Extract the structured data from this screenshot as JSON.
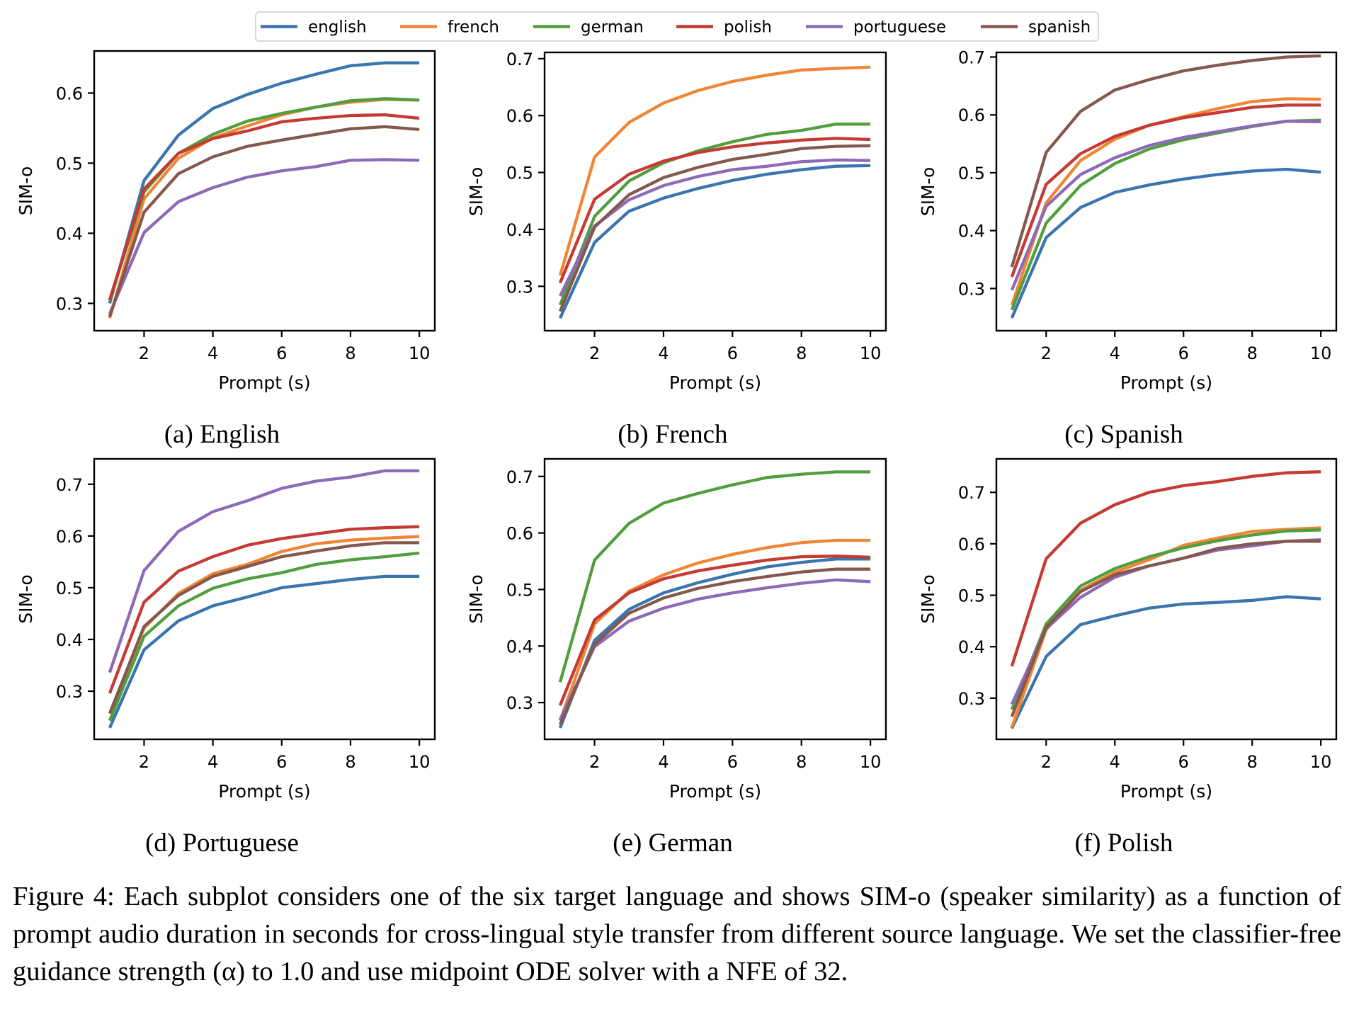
{
  "legend": {
    "entries": [
      {
        "key": "english",
        "label": "english",
        "color": "#3a75ae"
      },
      {
        "key": "french",
        "label": "french",
        "color": "#ef8636"
      },
      {
        "key": "german",
        "label": "german",
        "color": "#519e3e"
      },
      {
        "key": "polish",
        "label": "polish",
        "color": "#c53a32"
      },
      {
        "key": "portuguese",
        "label": "portuguese",
        "color": "#8d6ab8"
      },
      {
        "key": "spanish",
        "label": "spanish",
        "color": "#85584e"
      }
    ],
    "placement": "top-center"
  },
  "caption": "Figure 4: Each subplot considers one of the six target language and shows SIM-o (speaker similarity) as a function of prompt audio duration in seconds for cross-lingual style transfer from different source language. We set the classifier-free guidance strength (α) to 1.0 and use midpoint ODE solver with a NFE of 32.",
  "chart_data": [
    {
      "type": "line",
      "subcaption": "(a) English",
      "xlabel": "Prompt (s)",
      "ylabel": "SIM-o",
      "x": [
        1,
        2,
        3,
        4,
        5,
        6,
        7,
        8,
        9,
        10
      ],
      "xticks": [
        2,
        4,
        6,
        8,
        10
      ],
      "yticks": [
        0.3,
        0.4,
        0.5,
        0.6
      ],
      "xlim": [
        0.55,
        10.45
      ],
      "ylim": [
        0.261,
        0.66
      ],
      "grid": false,
      "series": [
        {
          "name": "english",
          "values": [
            0.3,
            0.475,
            0.54,
            0.578,
            0.598,
            0.614,
            0.627,
            0.639,
            0.643,
            0.643
          ]
        },
        {
          "name": "french",
          "values": [
            0.279,
            0.449,
            0.507,
            0.536,
            0.553,
            0.569,
            0.58,
            0.587,
            0.591,
            0.59
          ]
        },
        {
          "name": "german",
          "values": [
            0.304,
            0.459,
            0.514,
            0.541,
            0.56,
            0.571,
            0.58,
            0.589,
            0.592,
            0.59
          ]
        },
        {
          "name": "polish",
          "values": [
            0.305,
            0.463,
            0.514,
            0.535,
            0.546,
            0.559,
            0.564,
            0.568,
            0.569,
            0.564
          ]
        },
        {
          "name": "portuguese",
          "values": [
            0.285,
            0.401,
            0.445,
            0.465,
            0.48,
            0.489,
            0.495,
            0.504,
            0.505,
            0.504
          ]
        },
        {
          "name": "spanish",
          "values": [
            0.281,
            0.43,
            0.485,
            0.509,
            0.524,
            0.533,
            0.541,
            0.549,
            0.552,
            0.548
          ]
        }
      ]
    },
    {
      "type": "line",
      "subcaption": "(b) French",
      "xlabel": "Prompt (s)",
      "ylabel": "SIM-o",
      "x": [
        1,
        2,
        3,
        4,
        5,
        6,
        7,
        8,
        9,
        10
      ],
      "xticks": [
        2,
        4,
        6,
        8,
        10
      ],
      "yticks": [
        0.3,
        0.4,
        0.5,
        0.6,
        0.7
      ],
      "xlim": [
        0.55,
        10.45
      ],
      "ylim": [
        0.222,
        0.711
      ],
      "grid": false,
      "series": [
        {
          "name": "english",
          "values": [
            0.244,
            0.377,
            0.432,
            0.455,
            0.472,
            0.486,
            0.497,
            0.505,
            0.511,
            0.512
          ]
        },
        {
          "name": "french",
          "values": [
            0.319,
            0.527,
            0.588,
            0.622,
            0.644,
            0.66,
            0.671,
            0.68,
            0.683,
            0.685
          ]
        },
        {
          "name": "german",
          "values": [
            0.267,
            0.423,
            0.485,
            0.517,
            0.538,
            0.554,
            0.567,
            0.574,
            0.585,
            0.585
          ]
        },
        {
          "name": "polish",
          "values": [
            0.306,
            0.453,
            0.497,
            0.52,
            0.535,
            0.545,
            0.552,
            0.557,
            0.56,
            0.558
          ]
        },
        {
          "name": "portuguese",
          "values": [
            0.283,
            0.406,
            0.452,
            0.477,
            0.493,
            0.505,
            0.511,
            0.519,
            0.522,
            0.521
          ]
        },
        {
          "name": "spanish",
          "values": [
            0.256,
            0.404,
            0.461,
            0.491,
            0.509,
            0.523,
            0.532,
            0.542,
            0.546,
            0.547
          ]
        }
      ]
    },
    {
      "type": "line",
      "subcaption": "(c) Spanish",
      "xlabel": "Prompt (s)",
      "ylabel": "SIM-o",
      "x": [
        1,
        2,
        3,
        4,
        5,
        6,
        7,
        8,
        9,
        10
      ],
      "xticks": [
        2,
        4,
        6,
        8,
        10
      ],
      "yticks": [
        0.3,
        0.4,
        0.5,
        0.6,
        0.7
      ],
      "xlim": [
        0.55,
        10.45
      ],
      "ylim": [
        0.227,
        0.708
      ],
      "grid": false,
      "series": [
        {
          "name": "english",
          "values": [
            0.249,
            0.388,
            0.44,
            0.466,
            0.479,
            0.489,
            0.497,
            0.503,
            0.506,
            0.501
          ]
        },
        {
          "name": "french",
          "values": [
            0.271,
            0.448,
            0.521,
            0.558,
            0.582,
            0.597,
            0.611,
            0.623,
            0.628,
            0.627
          ]
        },
        {
          "name": "german",
          "values": [
            0.263,
            0.413,
            0.478,
            0.516,
            0.541,
            0.557,
            0.569,
            0.58,
            0.589,
            0.591
          ]
        },
        {
          "name": "polish",
          "values": [
            0.32,
            0.48,
            0.533,
            0.563,
            0.582,
            0.595,
            0.604,
            0.613,
            0.617,
            0.617
          ]
        },
        {
          "name": "portuguese",
          "values": [
            0.297,
            0.442,
            0.497,
            0.526,
            0.547,
            0.561,
            0.571,
            0.581,
            0.589,
            0.588
          ]
        },
        {
          "name": "spanish",
          "values": [
            0.337,
            0.535,
            0.606,
            0.643,
            0.661,
            0.676,
            0.686,
            0.694,
            0.7,
            0.702
          ]
        }
      ]
    },
    {
      "type": "line",
      "subcaption": "(d) Portuguese",
      "xlabel": "Prompt (s)",
      "ylabel": "SIM-o",
      "x": [
        1,
        2,
        3,
        4,
        5,
        6,
        7,
        8,
        9,
        10
      ],
      "xticks": [
        2,
        4,
        6,
        8,
        10
      ],
      "yticks": [
        0.3,
        0.4,
        0.5,
        0.6,
        0.7
      ],
      "xlim": [
        0.55,
        10.45
      ],
      "ylim": [
        0.207,
        0.749
      ],
      "grid": false,
      "series": [
        {
          "name": "english",
          "values": [
            0.229,
            0.38,
            0.436,
            0.465,
            0.482,
            0.5,
            0.508,
            0.516,
            0.522,
            0.522
          ]
        },
        {
          "name": "french",
          "values": [
            0.257,
            0.422,
            0.489,
            0.527,
            0.545,
            0.57,
            0.585,
            0.592,
            0.596,
            0.599
          ]
        },
        {
          "name": "german",
          "values": [
            0.243,
            0.406,
            0.465,
            0.499,
            0.517,
            0.529,
            0.545,
            0.554,
            0.56,
            0.567
          ]
        },
        {
          "name": "polish",
          "values": [
            0.296,
            0.472,
            0.532,
            0.56,
            0.582,
            0.595,
            0.604,
            0.613,
            0.616,
            0.618
          ]
        },
        {
          "name": "portuguese",
          "values": [
            0.336,
            0.533,
            0.609,
            0.647,
            0.668,
            0.692,
            0.706,
            0.714,
            0.726,
            0.726
          ]
        },
        {
          "name": "spanish",
          "values": [
            0.257,
            0.425,
            0.485,
            0.522,
            0.541,
            0.56,
            0.571,
            0.581,
            0.587,
            0.587
          ]
        }
      ]
    },
    {
      "type": "line",
      "subcaption": "(e) German",
      "xlabel": "Prompt (s)",
      "ylabel": "SIM-o",
      "x": [
        1,
        2,
        3,
        4,
        5,
        6,
        7,
        8,
        9,
        10
      ],
      "xticks": [
        2,
        4,
        6,
        8,
        10
      ],
      "yticks": [
        0.3,
        0.4,
        0.5,
        0.6,
        0.7
      ],
      "xlim": [
        0.55,
        10.45
      ],
      "ylim": [
        0.235,
        0.731
      ],
      "grid": false,
      "series": [
        {
          "name": "english",
          "values": [
            0.255,
            0.41,
            0.465,
            0.494,
            0.512,
            0.527,
            0.54,
            0.548,
            0.554,
            0.554
          ]
        },
        {
          "name": "french",
          "values": [
            0.268,
            0.439,
            0.497,
            0.526,
            0.547,
            0.562,
            0.574,
            0.583,
            0.587,
            0.587
          ]
        },
        {
          "name": "german",
          "values": [
            0.336,
            0.552,
            0.617,
            0.653,
            0.67,
            0.685,
            0.698,
            0.704,
            0.708,
            0.708
          ]
        },
        {
          "name": "polish",
          "values": [
            0.295,
            0.446,
            0.494,
            0.519,
            0.533,
            0.543,
            0.552,
            0.558,
            0.559,
            0.557
          ]
        },
        {
          "name": "portuguese",
          "values": [
            0.27,
            0.399,
            0.444,
            0.467,
            0.483,
            0.494,
            0.503,
            0.511,
            0.517,
            0.514
          ]
        },
        {
          "name": "spanish",
          "values": [
            0.261,
            0.403,
            0.458,
            0.485,
            0.502,
            0.514,
            0.523,
            0.531,
            0.536,
            0.536
          ]
        }
      ]
    },
    {
      "type": "line",
      "subcaption": "(f) Polish",
      "xlabel": "Prompt (s)",
      "ylabel": "SIM-o",
      "x": [
        1,
        2,
        3,
        4,
        5,
        6,
        7,
        8,
        9,
        10
      ],
      "xticks": [
        2,
        4,
        6,
        8,
        10
      ],
      "yticks": [
        0.3,
        0.4,
        0.5,
        0.6,
        0.7
      ],
      "xlim": [
        0.55,
        10.45
      ],
      "ylim": [
        0.22,
        0.765
      ],
      "grid": false,
      "series": [
        {
          "name": "english",
          "values": [
            0.241,
            0.381,
            0.443,
            0.46,
            0.475,
            0.483,
            0.486,
            0.49,
            0.497,
            0.493
          ]
        },
        {
          "name": "french",
          "values": [
            0.243,
            0.433,
            0.51,
            0.545,
            0.569,
            0.597,
            0.611,
            0.624,
            0.628,
            0.631
          ]
        },
        {
          "name": "german",
          "values": [
            0.278,
            0.444,
            0.518,
            0.552,
            0.575,
            0.592,
            0.606,
            0.617,
            0.625,
            0.627
          ]
        },
        {
          "name": "polish",
          "values": [
            0.362,
            0.571,
            0.64,
            0.676,
            0.7,
            0.713,
            0.721,
            0.731,
            0.738,
            0.74
          ]
        },
        {
          "name": "portuguese",
          "values": [
            0.288,
            0.435,
            0.496,
            0.535,
            0.557,
            0.572,
            0.588,
            0.596,
            0.605,
            0.608
          ]
        },
        {
          "name": "spanish",
          "values": [
            0.264,
            0.437,
            0.507,
            0.54,
            0.557,
            0.572,
            0.591,
            0.6,
            0.605,
            0.605
          ]
        }
      ]
    }
  ]
}
